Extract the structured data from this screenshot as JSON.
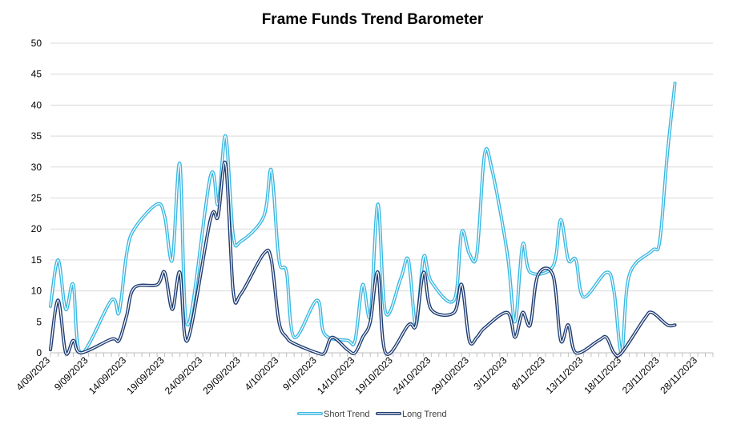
{
  "chart_data": {
    "type": "line",
    "title": "Frame Funds Trend Barometer",
    "xlabel": "",
    "ylabel": "",
    "ylim": [
      0,
      50
    ],
    "yticks": [
      0,
      5,
      10,
      15,
      20,
      25,
      30,
      35,
      40,
      45,
      50
    ],
    "xlim": [
      "2023-09-04",
      "2023-11-30"
    ],
    "xtick_labels": [
      "4/09/2023",
      "9/09/2023",
      "14/09/2023",
      "19/09/2023",
      "24/09/2023",
      "29/09/2023",
      "4/10/2023",
      "9/10/2023",
      "14/10/2023",
      "19/10/2023",
      "24/10/2023",
      "29/10/2023",
      "3/11/2023",
      "8/11/2023",
      "13/11/2023",
      "18/11/2023",
      "23/11/2023",
      "28/11/2023"
    ],
    "grid": true,
    "legend": "bottom",
    "series": [
      {
        "name": "Short Trend",
        "color": "#3bb8e2",
        "points": [
          [
            "2023-09-04",
            7.5
          ],
          [
            "2023-09-05",
            15
          ],
          [
            "2023-09-06",
            7
          ],
          [
            "2023-09-07",
            11
          ],
          [
            "2023-09-08",
            0
          ],
          [
            "2023-09-12",
            8.5
          ],
          [
            "2023-09-13",
            6.5
          ],
          [
            "2023-09-14",
            16
          ],
          [
            "2023-09-15",
            20
          ],
          [
            "2023-09-18",
            24
          ],
          [
            "2023-09-19",
            22
          ],
          [
            "2023-09-20",
            15
          ],
          [
            "2023-09-21",
            30.5
          ],
          [
            "2023-09-22",
            4.5
          ],
          [
            "2023-09-25",
            28.5
          ],
          [
            "2023-09-26",
            24
          ],
          [
            "2023-09-27",
            35
          ],
          [
            "2023-09-28",
            19
          ],
          [
            "2023-09-29",
            18
          ],
          [
            "2023-10-02",
            22
          ],
          [
            "2023-10-03",
            29.5
          ],
          [
            "2023-10-04",
            15
          ],
          [
            "2023-10-05",
            13
          ],
          [
            "2023-10-06",
            2.5
          ],
          [
            "2023-10-09",
            8.5
          ],
          [
            "2023-10-10",
            3
          ],
          [
            "2023-10-13",
            2
          ],
          [
            "2023-10-14",
            2
          ],
          [
            "2023-10-15",
            11
          ],
          [
            "2023-10-16",
            6
          ],
          [
            "2023-10-17",
            24
          ],
          [
            "2023-10-18",
            6.5
          ],
          [
            "2023-10-20",
            12
          ],
          [
            "2023-10-21",
            15
          ],
          [
            "2023-10-22",
            4.5
          ],
          [
            "2023-10-23",
            15.5
          ],
          [
            "2023-10-24",
            11.5
          ],
          [
            "2023-10-27",
            8.5
          ],
          [
            "2023-10-28",
            19.5
          ],
          [
            "2023-10-29",
            16
          ],
          [
            "2023-10-30",
            16
          ],
          [
            "2023-10-31",
            32
          ],
          [
            "2023-11-01",
            29.5
          ],
          [
            "2023-11-03",
            16
          ],
          [
            "2023-11-04",
            5
          ],
          [
            "2023-11-05",
            17.5
          ],
          [
            "2023-11-06",
            13
          ],
          [
            "2023-11-09",
            14
          ],
          [
            "2023-11-10",
            21.5
          ],
          [
            "2023-11-11",
            15
          ],
          [
            "2023-11-12",
            15
          ],
          [
            "2023-11-13",
            9
          ],
          [
            "2023-11-16",
            13
          ],
          [
            "2023-11-17",
            10
          ],
          [
            "2023-11-18",
            0
          ],
          [
            "2023-11-19",
            12.5
          ],
          [
            "2023-11-22",
            16.5
          ],
          [
            "2023-11-23",
            18
          ],
          [
            "2023-11-24",
            32
          ],
          [
            "2023-11-25",
            43.5
          ]
        ]
      },
      {
        "name": "Long Trend",
        "color": "#1f3d73",
        "points": [
          [
            "2023-09-04",
            0.5
          ],
          [
            "2023-09-05",
            8.5
          ],
          [
            "2023-09-06",
            0
          ],
          [
            "2023-09-07",
            2
          ],
          [
            "2023-09-08",
            0
          ],
          [
            "2023-09-12",
            2.2
          ],
          [
            "2023-09-13",
            2
          ],
          [
            "2023-09-14",
            6
          ],
          [
            "2023-09-15",
            10.5
          ],
          [
            "2023-09-18",
            11
          ],
          [
            "2023-09-19",
            13
          ],
          [
            "2023-09-20",
            7
          ],
          [
            "2023-09-21",
            13
          ],
          [
            "2023-09-22",
            2
          ],
          [
            "2023-09-25",
            21.5
          ],
          [
            "2023-09-26",
            22
          ],
          [
            "2023-09-27",
            30.5
          ],
          [
            "2023-09-28",
            10
          ],
          [
            "2023-09-29",
            9.5
          ],
          [
            "2023-10-02",
            16
          ],
          [
            "2023-10-03",
            15
          ],
          [
            "2023-10-04",
            5
          ],
          [
            "2023-10-05",
            2.5
          ],
          [
            "2023-10-06",
            1.5
          ],
          [
            "2023-10-09",
            0
          ],
          [
            "2023-10-10",
            0
          ],
          [
            "2023-10-11",
            2.5
          ],
          [
            "2023-10-13",
            0.5
          ],
          [
            "2023-10-14",
            0
          ],
          [
            "2023-10-15",
            2.5
          ],
          [
            "2023-10-16",
            5
          ],
          [
            "2023-10-17",
            13
          ],
          [
            "2023-10-18",
            0
          ],
          [
            "2023-10-21",
            4.5
          ],
          [
            "2023-10-22",
            4.5
          ],
          [
            "2023-10-23",
            13
          ],
          [
            "2023-10-24",
            7
          ],
          [
            "2023-10-27",
            6.5
          ],
          [
            "2023-10-28",
            11
          ],
          [
            "2023-10-29",
            2
          ],
          [
            "2023-10-30",
            2.5
          ],
          [
            "2023-10-31",
            4
          ],
          [
            "2023-11-03",
            6.5
          ],
          [
            "2023-11-04",
            2.5
          ],
          [
            "2023-11-05",
            6.5
          ],
          [
            "2023-11-06",
            4.5
          ],
          [
            "2023-11-07",
            12.5
          ],
          [
            "2023-11-09",
            12.5
          ],
          [
            "2023-11-10",
            2
          ],
          [
            "2023-11-11",
            4.5
          ],
          [
            "2023-11-12",
            0
          ],
          [
            "2023-11-15",
            2
          ],
          [
            "2023-11-16",
            2.5
          ],
          [
            "2023-11-17",
            0
          ],
          [
            "2023-11-18",
            0
          ],
          [
            "2023-11-21",
            5.5
          ],
          [
            "2023-11-22",
            6.5
          ],
          [
            "2023-11-24",
            4.5
          ],
          [
            "2023-11-25",
            4.5
          ]
        ]
      }
    ]
  }
}
